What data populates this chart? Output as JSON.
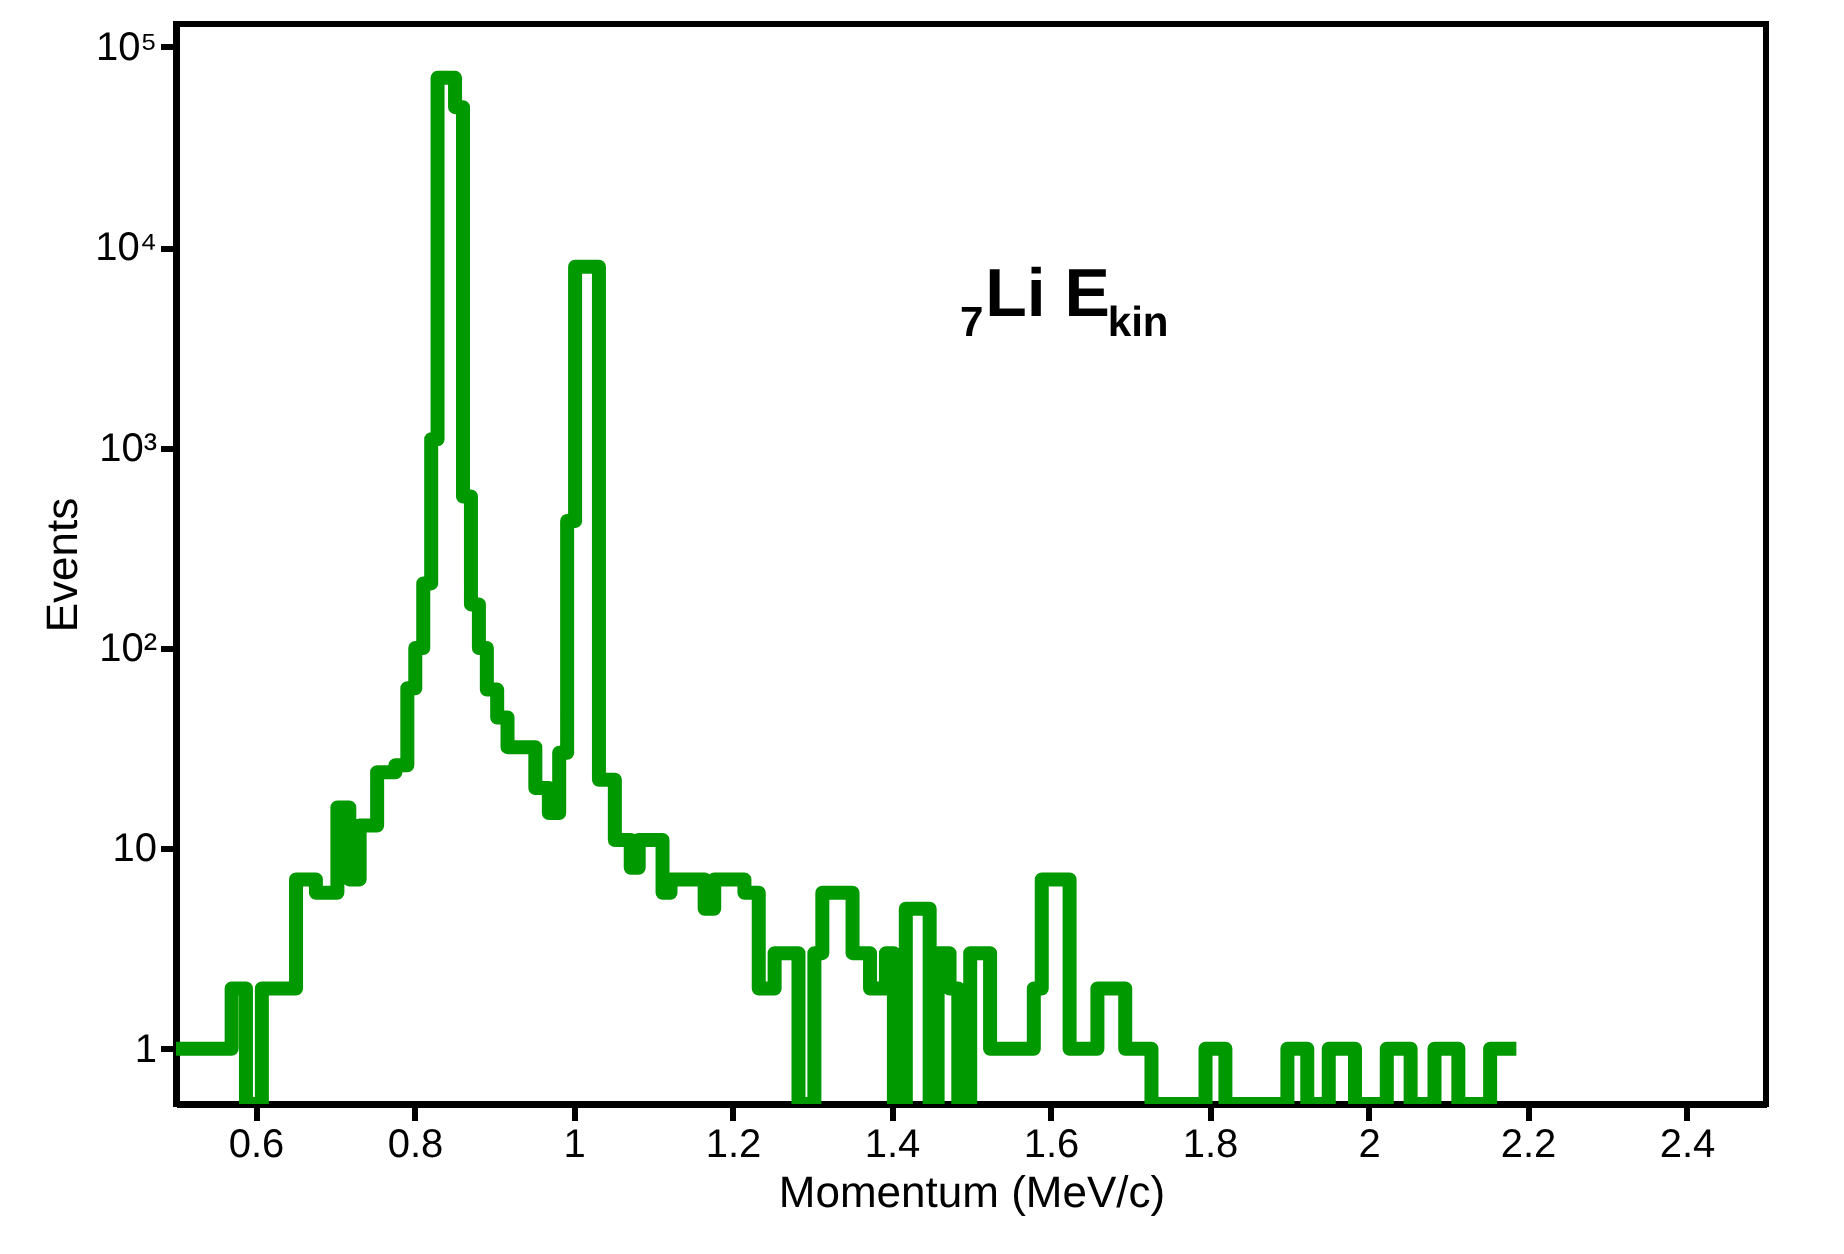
{
  "chart_data": {
    "type": "histogram",
    "xlabel": "Momentum (MeV/c)",
    "ylabel": "Events",
    "annotations": [
      "$_{7}$Li E$_{kin}$"
    ],
    "bins": [
      0.5,
      0.57,
      0.588,
      0.608,
      0.651,
      0.676,
      0.703,
      0.718,
      0.731,
      0.753,
      0.776,
      0.791,
      0.801,
      0.811,
      0.821,
      0.829,
      0.851,
      0.861,
      0.871,
      0.881,
      0.891,
      0.904,
      0.917,
      0.952,
      0.969,
      0.982,
      0.992,
      1.002,
      1.032,
      1.052,
      1.072,
      1.082,
      1.112,
      1.122,
      1.165,
      1.177,
      1.215,
      1.233,
      1.253,
      1.283,
      1.303,
      1.313,
      1.351,
      1.373,
      1.393,
      1.403,
      1.418,
      1.448,
      1.458,
      1.473,
      1.484,
      1.499,
      1.524,
      1.579,
      1.589,
      1.624,
      1.659,
      1.694,
      1.727,
      1.795,
      1.82,
      1.898,
      1.923,
      1.95,
      1.983,
      2.023,
      2.053,
      2.083,
      2.113,
      2.153,
      2.186
    ],
    "values": [
      1,
      2,
      null,
      2,
      7,
      6,
      16,
      7,
      13,
      24,
      26,
      63,
      100,
      210,
      1100,
      70000,
      50000,
      570,
      165,
      100,
      62,
      45,
      32,
      20,
      15,
      30,
      430,
      8000,
      22,
      11,
      8,
      11,
      6,
      7,
      5,
      7,
      6,
      2,
      3,
      null,
      3,
      6,
      3,
      2,
      3,
      null,
      5,
      null,
      3,
      2,
      null,
      3,
      1,
      2,
      7,
      1,
      2,
      1,
      null,
      1,
      null,
      1,
      null,
      1,
      null,
      1,
      null,
      1,
      null,
      1
    ],
    "color": "#009900",
    "log": true,
    "xlim": [
      0.5,
      2.5
    ],
    "xticks": [
      0.6,
      0.8,
      1,
      1.2,
      1.4,
      1.6,
      1.8,
      2,
      2.2,
      2.4
    ],
    "ylim": [
      0.53,
      130000
    ],
    "yticks": [
      1,
      10,
      {
        "value": 100,
        "label": "10²"
      },
      {
        "value": 1000,
        "label": "10³"
      },
      {
        "value": 10000,
        "label": "10⁴"
      },
      {
        "value": 100000,
        "label": "10⁵"
      }
    ],
    "grid": false
  }
}
